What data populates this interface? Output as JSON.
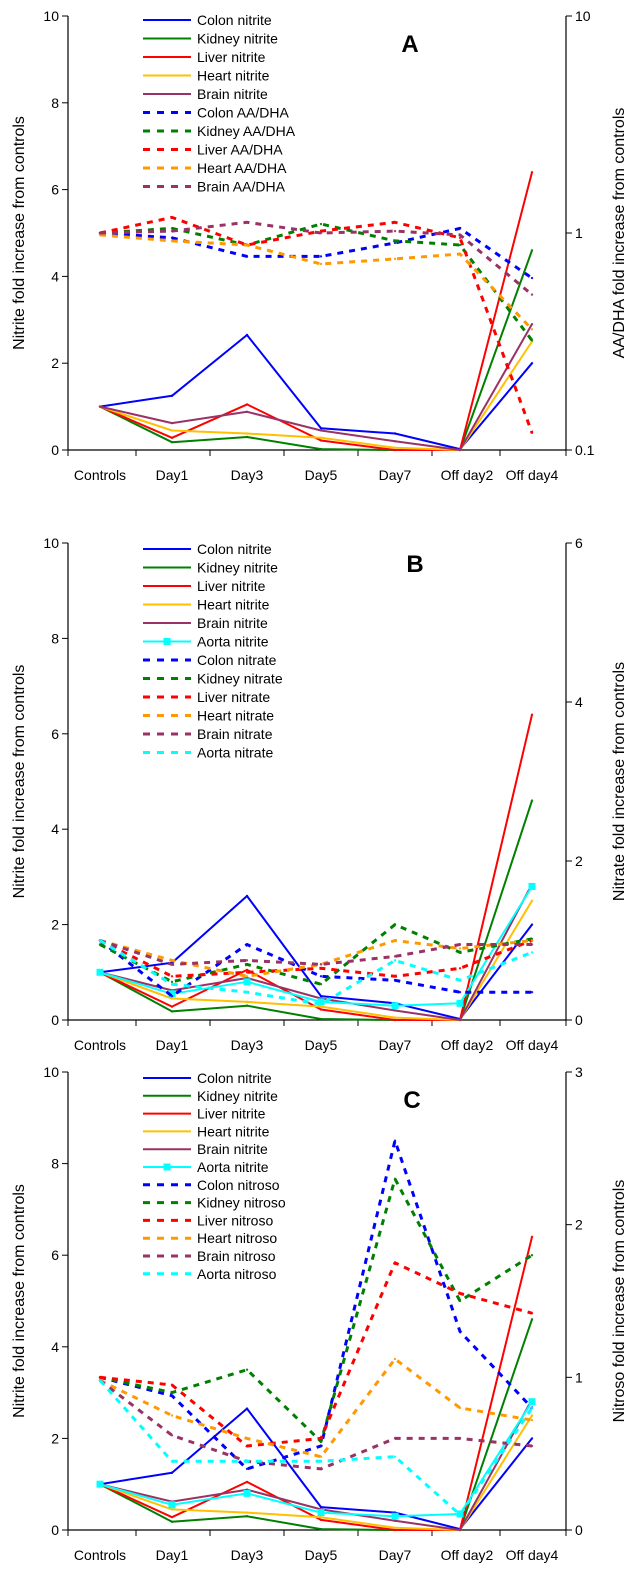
{
  "chart_data": [
    {
      "type": "line",
      "panel_label": "A",
      "categories": [
        "Controls",
        "Day1",
        "Day3",
        "Day5",
        "Day7",
        "Off day2",
        "Off day4"
      ],
      "ylabel": "Nitrite fold increase from controls",
      "ylim": [
        0,
        10
      ],
      "yticks": [
        "0",
        "2",
        "4",
        "6",
        "8",
        "10"
      ],
      "y2label": "AA/DHA fold increase from controls",
      "y2lim": [
        0.1,
        10
      ],
      "y2scale": "log",
      "y2ticks": [
        "0.1",
        "1",
        "10"
      ],
      "legend_position": "top-left",
      "series": [
        {
          "name": "Colon nitrite",
          "color": "#0000ff",
          "dash": "solid",
          "axis": "left",
          "marker": false,
          "values": [
            1.0,
            1.25,
            2.65,
            0.5,
            0.38,
            0.02,
            2.0
          ]
        },
        {
          "name": "Kidney nitrite",
          "color": "#008000",
          "dash": "solid",
          "axis": "left",
          "marker": false,
          "values": [
            1.0,
            0.18,
            0.3,
            0.02,
            0.0,
            0.0,
            4.6
          ]
        },
        {
          "name": "Liver nitrite",
          "color": "#ff0000",
          "dash": "solid",
          "axis": "left",
          "marker": false,
          "values": [
            1.0,
            0.28,
            1.05,
            0.22,
            0.0,
            0.0,
            6.4
          ]
        },
        {
          "name": "Heart nitrite",
          "color": "#ffc000",
          "dash": "solid",
          "axis": "left",
          "marker": false,
          "values": [
            1.0,
            0.45,
            0.38,
            0.28,
            0.05,
            0.0,
            2.5
          ]
        },
        {
          "name": "Brain nitrite",
          "color": "#993366",
          "dash": "solid",
          "axis": "left",
          "marker": false,
          "values": [
            1.0,
            0.62,
            0.88,
            0.45,
            0.2,
            0.0,
            2.9
          ]
        },
        {
          "name": "Colon AA/DHA",
          "color": "#0000ff",
          "dash": "dashed",
          "axis": "right",
          "marker": false,
          "values": [
            1.0,
            0.95,
            0.78,
            0.78,
            0.9,
            1.05,
            0.62
          ]
        },
        {
          "name": "Kidney AA/DHA",
          "color": "#008000",
          "dash": "dashed",
          "axis": "right",
          "marker": false,
          "values": [
            1.0,
            1.05,
            0.88,
            1.1,
            0.92,
            0.88,
            0.32
          ]
        },
        {
          "name": "Liver AA/DHA",
          "color": "#ff0000",
          "dash": "dashed",
          "axis": "right",
          "marker": false,
          "values": [
            1.0,
            1.18,
            0.88,
            1.02,
            1.12,
            0.95,
            0.12
          ]
        },
        {
          "name": "Heart AA/DHA",
          "color": "#ff9900",
          "dash": "dashed",
          "axis": "right",
          "marker": false,
          "values": [
            0.98,
            0.92,
            0.88,
            0.72,
            0.76,
            0.8,
            0.36
          ]
        },
        {
          "name": "Brain AA/DHA",
          "color": "#993366",
          "dash": "dashed",
          "axis": "right",
          "marker": false,
          "values": [
            1.0,
            1.02,
            1.12,
            1.0,
            1.02,
            0.98,
            0.52
          ]
        }
      ]
    },
    {
      "type": "line",
      "panel_label": "B",
      "categories": [
        "Controls",
        "Day1",
        "Day3",
        "Day5",
        "Day7",
        "Off day2",
        "Off day4"
      ],
      "ylabel": "Nitrite fold increase from controls",
      "ylim": [
        0,
        10
      ],
      "yticks": [
        "0",
        "2",
        "4",
        "6",
        "8",
        "10"
      ],
      "y2label": "Nitrate fold increase from controls",
      "y2lim": [
        0,
        6
      ],
      "y2scale": "linear",
      "y2ticks": [
        "0",
        "2",
        "4",
        "6"
      ],
      "legend_position": "top-left",
      "series": [
        {
          "name": "Colon nitrite",
          "color": "#0000ff",
          "dash": "solid",
          "axis": "left",
          "marker": false,
          "values": [
            1.0,
            1.2,
            2.6,
            0.5,
            0.35,
            0.02,
            2.0
          ]
        },
        {
          "name": "Kidney nitrite",
          "color": "#008000",
          "dash": "solid",
          "axis": "left",
          "marker": false,
          "values": [
            1.0,
            0.18,
            0.3,
            0.02,
            0.0,
            0.0,
            4.6
          ]
        },
        {
          "name": "Liver nitrite",
          "color": "#ff0000",
          "dash": "solid",
          "axis": "left",
          "marker": false,
          "values": [
            1.0,
            0.28,
            1.05,
            0.22,
            0.0,
            0.0,
            6.4
          ]
        },
        {
          "name": "Heart nitrite",
          "color": "#ffc000",
          "dash": "solid",
          "axis": "left",
          "marker": false,
          "values": [
            1.0,
            0.45,
            0.38,
            0.28,
            0.05,
            0.0,
            2.5
          ]
        },
        {
          "name": "Brain nitrite",
          "color": "#993366",
          "dash": "solid",
          "axis": "left",
          "marker": false,
          "values": [
            1.0,
            0.62,
            0.88,
            0.45,
            0.2,
            0.0,
            2.85
          ]
        },
        {
          "name": "Aorta nitrite",
          "color": "#00ffff",
          "dash": "solid",
          "axis": "left",
          "marker": true,
          "values": [
            1.0,
            0.55,
            0.8,
            0.38,
            0.3,
            0.35,
            2.8
          ]
        },
        {
          "name": "Colon nitrate",
          "color": "#0000ff",
          "dash": "dashed",
          "axis": "right",
          "marker": false,
          "values": [
            1.0,
            0.3,
            0.95,
            0.55,
            0.5,
            0.35,
            0.35
          ]
        },
        {
          "name": "Kidney nitrate",
          "color": "#008000",
          "dash": "dashed",
          "axis": "right",
          "marker": false,
          "values": [
            0.95,
            0.48,
            0.7,
            0.45,
            1.2,
            0.85,
            1.02
          ]
        },
        {
          "name": "Liver nitrate",
          "color": "#ff0000",
          "dash": "dashed",
          "axis": "right",
          "marker": false,
          "values": [
            1.0,
            0.55,
            0.6,
            0.65,
            0.55,
            0.65,
            1.0
          ]
        },
        {
          "name": "Heart nitrate",
          "color": "#ff9900",
          "dash": "dashed",
          "axis": "right",
          "marker": false,
          "values": [
            1.0,
            0.75,
            0.55,
            0.7,
            1.0,
            0.9,
            1.0
          ]
        },
        {
          "name": "Brain nitrate",
          "color": "#993366",
          "dash": "dashed",
          "axis": "right",
          "marker": false,
          "values": [
            1.0,
            0.7,
            0.75,
            0.7,
            0.8,
            0.95,
            0.95
          ]
        },
        {
          "name": "Aorta nitrate",
          "color": "#00ffff",
          "dash": "dashed",
          "axis": "right",
          "marker": false,
          "values": [
            1.0,
            0.45,
            0.35,
            0.2,
            0.75,
            0.5,
            0.85
          ]
        }
      ]
    },
    {
      "type": "line",
      "panel_label": "C",
      "categories": [
        "Controls",
        "Day1",
        "Day3",
        "Day5",
        "Day7",
        "Off day2",
        "Off day4"
      ],
      "ylabel": "Nitrite fold increase from controls",
      "ylim": [
        0,
        10
      ],
      "yticks": [
        "0",
        "2",
        "4",
        "6",
        "8",
        "10"
      ],
      "y2label": "Nitroso fold increase from controls",
      "y2lim": [
        0,
        3
      ],
      "y2scale": "linear",
      "y2ticks": [
        "0",
        "1",
        "2",
        "3"
      ],
      "legend_position": "top-left",
      "series": [
        {
          "name": "Colon nitrite",
          "color": "#0000ff",
          "dash": "solid",
          "axis": "left",
          "marker": false,
          "values": [
            1.0,
            1.25,
            2.65,
            0.5,
            0.38,
            0.02,
            2.0
          ]
        },
        {
          "name": "Kidney nitrite",
          "color": "#008000",
          "dash": "solid",
          "axis": "left",
          "marker": false,
          "values": [
            1.0,
            0.18,
            0.3,
            0.02,
            0.0,
            0.0,
            4.6
          ]
        },
        {
          "name": "Liver nitrite",
          "color": "#ff0000",
          "dash": "solid",
          "axis": "left",
          "marker": false,
          "values": [
            1.0,
            0.28,
            1.05,
            0.22,
            0.0,
            0.0,
            6.4
          ]
        },
        {
          "name": "Heart nitrite",
          "color": "#ffc000",
          "dash": "solid",
          "axis": "left",
          "marker": false,
          "values": [
            1.0,
            0.45,
            0.38,
            0.28,
            0.05,
            0.0,
            2.5
          ]
        },
        {
          "name": "Brain nitrite",
          "color": "#993366",
          "dash": "solid",
          "axis": "left",
          "marker": false,
          "values": [
            1.0,
            0.62,
            0.88,
            0.45,
            0.2,
            0.0,
            2.85
          ]
        },
        {
          "name": "Aorta nitrite",
          "color": "#00ffff",
          "dash": "solid",
          "axis": "left",
          "marker": true,
          "values": [
            1.0,
            0.55,
            0.8,
            0.38,
            0.3,
            0.35,
            2.8
          ]
        },
        {
          "name": "Colon nitroso",
          "color": "#0000ff",
          "dash": "dashed",
          "axis": "right",
          "marker": false,
          "values": [
            1.0,
            0.88,
            0.4,
            0.55,
            2.55,
            1.3,
            0.8
          ]
        },
        {
          "name": "Kidney nitroso",
          "color": "#008000",
          "dash": "dashed",
          "axis": "right",
          "marker": false,
          "values": [
            1.0,
            0.9,
            1.05,
            0.58,
            2.3,
            1.5,
            1.8
          ]
        },
        {
          "name": "Liver nitroso",
          "color": "#ff0000",
          "dash": "dashed",
          "axis": "right",
          "marker": false,
          "values": [
            1.0,
            0.95,
            0.55,
            0.6,
            1.75,
            1.55,
            1.42
          ]
        },
        {
          "name": "Heart nitroso",
          "color": "#ff9900",
          "dash": "dashed",
          "axis": "right",
          "marker": false,
          "values": [
            0.98,
            0.75,
            0.6,
            0.48,
            1.12,
            0.8,
            0.72
          ]
        },
        {
          "name": "Brain nitroso",
          "color": "#993366",
          "dash": "dashed",
          "axis": "right",
          "marker": false,
          "values": [
            0.98,
            0.62,
            0.45,
            0.4,
            0.6,
            0.6,
            0.55
          ]
        },
        {
          "name": "Aorta nitroso",
          "color": "#00ffff",
          "dash": "dashed",
          "axis": "right",
          "marker": false,
          "values": [
            0.98,
            0.45,
            0.45,
            0.45,
            0.48,
            0.1,
            0.8
          ]
        }
      ]
    }
  ]
}
